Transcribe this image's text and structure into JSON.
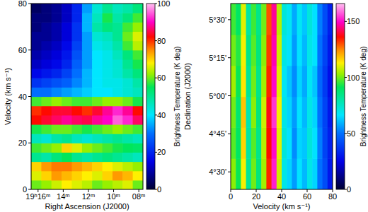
{
  "chart_data": [
    {
      "type": "heatmap",
      "x_label": "Right Ascension (J2000)",
      "y_label": "Velocity (km s⁻¹)",
      "xlim": [
        16.55,
        7.67
      ],
      "ylim": [
        0,
        80
      ],
      "xticks": [
        {
          "value": 16,
          "label": "19ʰ16ᵐ"
        },
        {
          "value": 14,
          "label": "14ᵐ"
        },
        {
          "value": 12,
          "label": "12ᵐ"
        },
        {
          "value": 10,
          "label": "10ᵐ"
        },
        {
          "value": 8,
          "label": "08ᵐ"
        }
      ],
      "yticks": [
        0,
        20,
        40,
        60,
        80
      ],
      "x_bins": [
        16.55,
        15.74,
        14.94,
        14.13,
        13.32,
        12.51,
        11.71,
        10.9,
        10.09,
        9.29,
        8.48,
        7.67
      ],
      "y_bins": [
        0,
        4,
        8,
        12,
        16,
        20,
        24,
        28,
        32,
        36,
        40,
        44,
        48,
        52,
        56,
        60,
        64,
        68,
        72,
        76,
        80
      ],
      "cells": [
        [
          60,
          62,
          65,
          68,
          66,
          64,
          60,
          62,
          64,
          66,
          60
        ],
        [
          66,
          70,
          74,
          72,
          70,
          68,
          66,
          70,
          74,
          72,
          68
        ],
        [
          70,
          74,
          76,
          76,
          74,
          72,
          70,
          68,
          66,
          64,
          62
        ],
        [
          50,
          48,
          52,
          55,
          50,
          48,
          50,
          52,
          50,
          48,
          46
        ],
        [
          58,
          60,
          62,
          70,
          66,
          62,
          60,
          58,
          56,
          55,
          54
        ],
        [
          46,
          44,
          48,
          50,
          46,
          44,
          46,
          48,
          50,
          48,
          46
        ],
        [
          56,
          58,
          60,
          60,
          58,
          56,
          58,
          60,
          62,
          60,
          58
        ],
        [
          82,
          84,
          86,
          88,
          86,
          85,
          88,
          90,
          95,
          92,
          86
        ],
        [
          80,
          82,
          84,
          84,
          82,
          80,
          84,
          88,
          92,
          88,
          82
        ],
        [
          58,
          60,
          62,
          60,
          58,
          58,
          60,
          62,
          62,
          60,
          56
        ],
        [
          30,
          30,
          32,
          34,
          36,
          38,
          40,
          40,
          42,
          44,
          46
        ],
        [
          22,
          24,
          26,
          28,
          32,
          36,
          40,
          42,
          42,
          44,
          48
        ],
        [
          16,
          18,
          20,
          24,
          30,
          36,
          40,
          42,
          44,
          48,
          52
        ],
        [
          12,
          14,
          16,
          20,
          28,
          34,
          40,
          42,
          44,
          50,
          56
        ],
        [
          10,
          12,
          14,
          18,
          26,
          34,
          40,
          42,
          46,
          52,
          58
        ],
        [
          8,
          10,
          12,
          16,
          24,
          34,
          42,
          44,
          48,
          58,
          64
        ],
        [
          8,
          8,
          10,
          14,
          22,
          34,
          44,
          46,
          50,
          60,
          66
        ],
        [
          6,
          8,
          10,
          14,
          22,
          36,
          48,
          52,
          50,
          58,
          62
        ],
        [
          6,
          6,
          8,
          12,
          20,
          36,
          46,
          56,
          48,
          52,
          58
        ],
        [
          4,
          6,
          8,
          12,
          20,
          34,
          44,
          50,
          46,
          48,
          52
        ]
      ],
      "colorbar_label": "Brightness Temperature (K deg)",
      "colorbar_range": [
        0,
        100
      ],
      "colorbar_ticks": [
        0,
        20,
        40,
        60,
        80,
        100
      ]
    },
    {
      "type": "heatmap",
      "x_label": "Velocity (km s⁻¹)",
      "y_label": "Declination (J2000)",
      "xlim": [
        0,
        80
      ],
      "ylim": [
        4.385,
        5.606
      ],
      "xticks": [
        0,
        20,
        40,
        60,
        80
      ],
      "yticks": [
        {
          "value": 4.5,
          "label": "4°30'"
        },
        {
          "value": 4.75,
          "label": "4°45'"
        },
        {
          "value": 5.0,
          "label": "5°00'"
        },
        {
          "value": 5.25,
          "label": "5°15'"
        },
        {
          "value": 5.5,
          "label": "5°30'"
        }
      ],
      "x_bins": [
        0,
        4,
        8,
        12,
        16,
        20,
        24,
        28,
        32,
        36,
        40,
        44,
        48,
        52,
        56,
        60,
        64,
        68,
        72,
        76,
        80
      ],
      "y_bins": [
        4.385,
        4.588,
        4.792,
        4.995,
        5.199,
        5.402,
        5.606
      ],
      "cells": [
        [
          102,
          92,
          112,
          82,
          100,
          86,
          104,
          134,
          152,
          108,
          70,
          64,
          56,
          66,
          60,
          70,
          64,
          50,
          42,
          30
        ],
        [
          98,
          90,
          116,
          80,
          98,
          84,
          106,
          136,
          150,
          110,
          72,
          66,
          54,
          64,
          62,
          72,
          66,
          52,
          40,
          32
        ],
        [
          100,
          88,
          118,
          78,
          102,
          86,
          108,
          138,
          154,
          112,
          70,
          64,
          56,
          66,
          60,
          70,
          64,
          50,
          40,
          30
        ],
        [
          104,
          92,
          114,
          82,
          100,
          84,
          104,
          134,
          150,
          110,
          68,
          62,
          54,
          64,
          58,
          68,
          62,
          48,
          38,
          28
        ],
        [
          100,
          94,
          112,
          84,
          98,
          86,
          102,
          132,
          148,
          108,
          70,
          66,
          56,
          66,
          60,
          70,
          66,
          50,
          40,
          30
        ],
        [
          96,
          90,
          110,
          80,
          96,
          84,
          100,
          130,
          146,
          106,
          72,
          68,
          58,
          68,
          62,
          72,
          66,
          52,
          42,
          32
        ]
      ],
      "colorbar_label": "Brightness Temperature (K deg)",
      "colorbar_range": [
        0,
        166
      ],
      "colorbar_ticks": [
        0,
        50,
        100,
        150
      ]
    }
  ]
}
